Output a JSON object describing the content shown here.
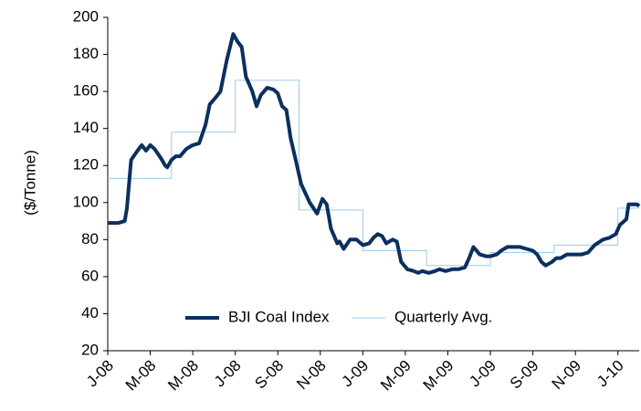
{
  "chart_data": {
    "type": "line",
    "y_label": "($/Tonne)",
    "xlim": [
      0,
      25
    ],
    "xticks": [
      {
        "value": 0,
        "label": "J-08"
      },
      {
        "value": 2,
        "label": "M-08"
      },
      {
        "value": 4,
        "label": "M-08"
      },
      {
        "value": 6,
        "label": "J-08"
      },
      {
        "value": 8,
        "label": "S-08"
      },
      {
        "value": 10,
        "label": "N-08"
      },
      {
        "value": 12,
        "label": "J-09"
      },
      {
        "value": 14,
        "label": "M-09"
      },
      {
        "value": 16,
        "label": "M-09"
      },
      {
        "value": 18,
        "label": "J-09"
      },
      {
        "value": 20,
        "label": "S-09"
      },
      {
        "value": 22,
        "label": "N-09"
      },
      {
        "value": 24,
        "label": "J-10"
      }
    ],
    "ylim": [
      20,
      200
    ],
    "yticks": [
      20,
      40,
      60,
      80,
      100,
      120,
      140,
      160,
      180,
      200
    ],
    "series": [
      {
        "name": "BJI Coal Index",
        "color": "#0b2f5e",
        "width": 4,
        "x": [
          0,
          0.5,
          0.8,
          0.9,
          1.1,
          1.4,
          1.6,
          1.8,
          2.0,
          2.2,
          2.5,
          2.7,
          2.8,
          3.0,
          3.2,
          3.4,
          3.7,
          4.0,
          4.3,
          4.6,
          4.8,
          5.1,
          5.3,
          5.6,
          5.9,
          6.1,
          6.3,
          6.5,
          6.8,
          7.0,
          7.2,
          7.5,
          7.8,
          8.0,
          8.2,
          8.4,
          8.6,
          8.9,
          9.1,
          9.5,
          9.85,
          10.1,
          10.3,
          10.5,
          10.8,
          10.9,
          11.1,
          11.4,
          11.7,
          12.0,
          12.3,
          12.5,
          12.7,
          12.9,
          13.1,
          13.4,
          13.6,
          13.8,
          14.1,
          14.4,
          14.6,
          14.8,
          15.1,
          15.4,
          15.6,
          15.9,
          16.2,
          16.5,
          16.8,
          17.0,
          17.2,
          17.5,
          17.8,
          18.0,
          18.3,
          18.5,
          18.8,
          19.1,
          19.4,
          19.7,
          20.0,
          20.2,
          20.4,
          20.6,
          20.9,
          21.1,
          21.3,
          21.6,
          22.0,
          22.3,
          22.6,
          22.9,
          23.3,
          23.6,
          23.9,
          24.1,
          24.4,
          24.5,
          24.9,
          25.0
        ],
        "values": [
          89,
          89,
          90,
          97,
          123,
          128,
          131,
          128,
          131,
          129,
          124,
          120,
          119,
          123,
          125,
          125,
          129,
          131,
          132,
          142,
          153,
          157,
          160,
          177,
          191,
          187,
          184,
          168,
          160,
          152,
          158,
          162,
          161,
          159,
          152,
          150,
          135,
          120,
          110,
          100,
          94,
          102,
          99,
          86,
          78,
          79,
          75,
          80,
          80,
          77,
          78,
          81,
          83,
          82,
          78,
          80,
          79,
          68,
          64,
          63,
          62,
          63,
          62,
          63,
          64,
          63,
          64,
          64,
          65,
          70,
          76,
          72,
          71,
          71,
          72,
          74,
          76,
          76,
          76,
          75,
          74,
          72,
          68,
          66,
          68,
          70,
          70,
          72,
          72,
          72,
          73,
          77,
          80,
          81,
          83,
          88,
          91,
          99,
          99,
          98
        ]
      },
      {
        "name": "Quarterly Avg.",
        "color": "#9ecae9",
        "width": 1,
        "x": [
          0,
          3,
          3,
          6,
          6,
          9,
          9,
          12,
          12,
          15,
          15,
          18,
          18,
          21,
          21,
          24,
          24,
          25
        ],
        "values": [
          113,
          113,
          138,
          138,
          166,
          166,
          96,
          96,
          74,
          74,
          66,
          66,
          73,
          73,
          77,
          77,
          97,
          97
        ]
      }
    ],
    "legend": "bottom"
  }
}
